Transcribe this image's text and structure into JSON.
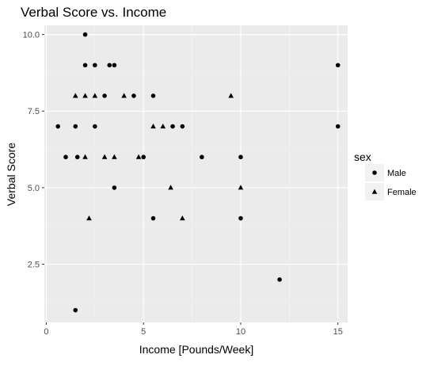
{
  "chart_data": {
    "type": "scatter",
    "title": "Verbal Score vs. Income",
    "xlabel": "Income [Pounds/Week]",
    "ylabel": "Verbal Score",
    "xlim": [
      -0.1,
      15.5
    ],
    "ylim": [
      0.6,
      10.3
    ],
    "x_ticks": [
      0,
      5,
      10,
      15
    ],
    "x_tick_labels": [
      "0",
      "5",
      "10",
      "15"
    ],
    "y_ticks": [
      2.5,
      5.0,
      7.5,
      10.0
    ],
    "y_tick_labels": [
      "2.5",
      "5.0",
      "7.5",
      "10.0"
    ],
    "grid": true,
    "legend": {
      "title": "sex",
      "placement": "right"
    },
    "series": [
      {
        "name": "Male",
        "marker": "circle",
        "color": "#000000",
        "points": [
          [
            2.0,
            10.0
          ],
          [
            2.0,
            9.0
          ],
          [
            2.5,
            9.0
          ],
          [
            3.25,
            9.0
          ],
          [
            3.5,
            9.0
          ],
          [
            15.0,
            9.0
          ],
          [
            3.0,
            8.0
          ],
          [
            4.5,
            8.0
          ],
          [
            5.5,
            8.0
          ],
          [
            0.6,
            7.0
          ],
          [
            1.5,
            7.0
          ],
          [
            2.5,
            7.0
          ],
          [
            6.5,
            7.0
          ],
          [
            7.0,
            7.0
          ],
          [
            15.0,
            7.0
          ],
          [
            1.0,
            6.0
          ],
          [
            1.6,
            6.0
          ],
          [
            5.0,
            6.0
          ],
          [
            8.0,
            6.0
          ],
          [
            10.0,
            6.0
          ],
          [
            3.5,
            5.0
          ],
          [
            5.5,
            4.0
          ],
          [
            10.0,
            4.0
          ],
          [
            12.0,
            2.0
          ],
          [
            1.5,
            1.0
          ]
        ]
      },
      {
        "name": "Female",
        "marker": "triangle",
        "color": "#000000",
        "points": [
          [
            1.5,
            8.0
          ],
          [
            2.0,
            8.0
          ],
          [
            2.5,
            8.0
          ],
          [
            4.0,
            8.0
          ],
          [
            9.5,
            8.0
          ],
          [
            5.5,
            7.0
          ],
          [
            6.0,
            7.0
          ],
          [
            2.0,
            6.0
          ],
          [
            3.0,
            6.0
          ],
          [
            3.5,
            6.0
          ],
          [
            4.75,
            6.0
          ],
          [
            6.4,
            5.0
          ],
          [
            10.0,
            5.0
          ],
          [
            2.2,
            4.0
          ],
          [
            7.0,
            4.0
          ]
        ]
      }
    ]
  },
  "colors": {
    "panel_background": "#ebebeb",
    "grid_major": "#ffffff",
    "grid_minor": "#f2f2f2",
    "tick_text": "#4d4d4d",
    "legend_key_background": "#f2f2f2"
  }
}
